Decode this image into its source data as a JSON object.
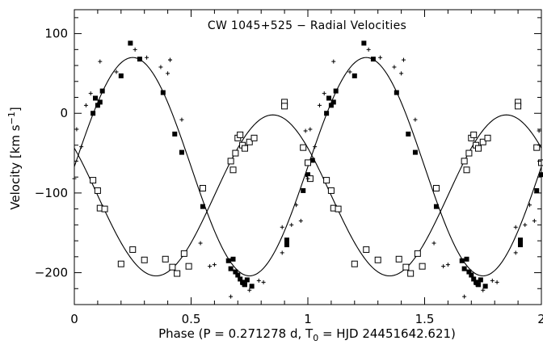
{
  "chart_data": {
    "type": "scatter",
    "title": "CW 1045+525 − Radial Velocities",
    "xlabel_main": "Phase (P = 0.271278 d, T",
    "xlabel_sub": "0",
    "xlabel_end": " = HJD 24451642.621)",
    "ylabel_main": "Velocity [km s",
    "ylabel_sup": "−1",
    "ylabel_end": "]",
    "xlim": [
      0,
      2
    ],
    "ylim": [
      -240,
      130
    ],
    "x_ticks": [
      {
        "value": 0,
        "label": "0"
      },
      {
        "value": 0.5,
        "label": "0.5"
      },
      {
        "value": 1,
        "label": "1"
      },
      {
        "value": 1.5,
        "label": "1.5"
      },
      {
        "value": 2,
        "label": "2"
      }
    ],
    "y_ticks": [
      {
        "value": 100,
        "label": "100"
      },
      {
        "value": 0,
        "label": "0"
      },
      {
        "value": -100,
        "label": "−100"
      },
      {
        "value": -200,
        "label": "−200"
      }
    ],
    "grid": false,
    "fits": [
      {
        "gamma": -67,
        "K": 137,
        "phase_max": 0.25
      },
      {
        "gamma": -103,
        "K": 101,
        "phase_max": 0.85
      }
    ],
    "series": [
      {
        "marker": "filled-square",
        "points": [
          [
            0.08,
            0
          ],
          [
            0.09,
            19
          ],
          [
            0.1,
            10
          ],
          [
            0.11,
            14
          ],
          [
            0.12,
            28
          ],
          [
            0.2,
            47
          ],
          [
            0.24,
            88
          ],
          [
            0.28,
            68
          ],
          [
            0.38,
            26
          ],
          [
            0.43,
            -26
          ],
          [
            0.46,
            -49
          ],
          [
            0.55,
            -117
          ],
          [
            0.66,
            -185
          ],
          [
            0.67,
            -195
          ],
          [
            0.68,
            -183
          ],
          [
            0.69,
            -199
          ],
          [
            0.7,
            -203
          ],
          [
            0.71,
            -208
          ],
          [
            0.72,
            -212
          ],
          [
            0.73,
            -215
          ],
          [
            0.74,
            -209
          ],
          [
            0.76,
            -217
          ],
          [
            0.98,
            -97
          ],
          [
            1.0,
            -77
          ],
          [
            1.02,
            -59
          ],
          [
            1.08,
            0
          ],
          [
            1.09,
            19
          ],
          [
            1.1,
            10
          ],
          [
            1.11,
            14
          ],
          [
            1.12,
            28
          ],
          [
            1.2,
            47
          ],
          [
            1.24,
            88
          ],
          [
            1.28,
            68
          ],
          [
            1.38,
            26
          ],
          [
            1.43,
            -26
          ],
          [
            1.46,
            -49
          ],
          [
            1.55,
            -117
          ],
          [
            1.66,
            -185
          ],
          [
            1.67,
            -195
          ],
          [
            1.68,
            -183
          ],
          [
            1.69,
            -199
          ],
          [
            1.7,
            -203
          ],
          [
            1.71,
            -208
          ],
          [
            1.72,
            -212
          ],
          [
            1.73,
            -215
          ],
          [
            1.74,
            -209
          ],
          [
            1.76,
            -217
          ],
          [
            1.91,
            -165
          ],
          [
            1.91,
            -159
          ],
          [
            1.98,
            -97
          ],
          [
            2.0,
            -77
          ],
          [
            0.91,
            -165
          ],
          [
            0.91,
            -159
          ]
        ]
      },
      {
        "marker": "open-square",
        "points": [
          [
            0.08,
            -84
          ],
          [
            0.1,
            -97
          ],
          [
            0.11,
            -119
          ],
          [
            0.13,
            -120
          ],
          [
            0.2,
            -189
          ],
          [
            0.25,
            -171
          ],
          [
            0.3,
            -184
          ],
          [
            0.39,
            -183
          ],
          [
            0.42,
            -193
          ],
          [
            0.44,
            -201
          ],
          [
            0.47,
            -176
          ],
          [
            0.49,
            -192
          ],
          [
            0.55,
            -94
          ],
          [
            0.67,
            -60
          ],
          [
            0.68,
            -71
          ],
          [
            0.69,
            -50
          ],
          [
            0.7,
            -31
          ],
          [
            0.71,
            -27
          ],
          [
            0.72,
            -40
          ],
          [
            0.73,
            -44
          ],
          [
            0.75,
            -36
          ],
          [
            0.77,
            -31
          ],
          [
            0.9,
            14
          ],
          [
            0.9,
            9
          ],
          [
            0.98,
            -43
          ],
          [
            1.0,
            -62
          ],
          [
            1.01,
            -82
          ],
          [
            1.08,
            -84
          ],
          [
            1.1,
            -97
          ],
          [
            1.11,
            -119
          ],
          [
            1.13,
            -120
          ],
          [
            1.2,
            -189
          ],
          [
            1.25,
            -171
          ],
          [
            1.3,
            -184
          ],
          [
            1.39,
            -183
          ],
          [
            1.42,
            -193
          ],
          [
            1.44,
            -201
          ],
          [
            1.47,
            -176
          ],
          [
            1.49,
            -192
          ],
          [
            1.55,
            -94
          ],
          [
            1.67,
            -60
          ],
          [
            1.68,
            -71
          ],
          [
            1.69,
            -50
          ],
          [
            1.7,
            -31
          ],
          [
            1.71,
            -27
          ],
          [
            1.72,
            -40
          ],
          [
            1.73,
            -44
          ],
          [
            1.75,
            -36
          ],
          [
            1.77,
            -31
          ],
          [
            1.9,
            14
          ],
          [
            1.9,
            9
          ],
          [
            1.98,
            -43
          ],
          [
            2.0,
            -62
          ]
        ]
      },
      {
        "marker": "plus",
        "points": [
          [
            0.0,
            -82
          ],
          [
            0.01,
            -20
          ],
          [
            0.03,
            -42
          ],
          [
            0.05,
            10
          ],
          [
            0.07,
            25
          ],
          [
            0.11,
            65
          ],
          [
            0.18,
            52
          ],
          [
            0.26,
            80
          ],
          [
            0.31,
            70
          ],
          [
            0.37,
            58
          ],
          [
            0.4,
            50
          ],
          [
            0.41,
            67
          ],
          [
            0.41,
            67
          ],
          [
            0.46,
            -8
          ],
          [
            0.54,
            -163
          ],
          [
            0.58,
            -192
          ],
          [
            0.6,
            -190
          ],
          [
            0.67,
            -230
          ],
          [
            0.72,
            -215
          ],
          [
            0.75,
            -222
          ],
          [
            0.79,
            -210
          ],
          [
            0.81,
            -212
          ],
          [
            0.89,
            -175
          ],
          [
            0.89,
            -143
          ],
          [
            0.93,
            -140
          ],
          [
            0.95,
            -115
          ],
          [
            0.97,
            -135
          ],
          [
            0.99,
            -22
          ],
          [
            1.0,
            -82
          ],
          [
            1.01,
            -20
          ],
          [
            1.03,
            -42
          ],
          [
            1.05,
            10
          ],
          [
            1.07,
            25
          ],
          [
            1.11,
            65
          ],
          [
            1.18,
            52
          ],
          [
            1.26,
            80
          ],
          [
            1.31,
            70
          ],
          [
            1.37,
            58
          ],
          [
            1.4,
            50
          ],
          [
            1.41,
            67
          ],
          [
            1.46,
            -8
          ],
          [
            1.54,
            -163
          ],
          [
            1.58,
            -192
          ],
          [
            1.6,
            -190
          ],
          [
            1.67,
            -230
          ],
          [
            1.72,
            -215
          ],
          [
            1.75,
            -222
          ],
          [
            1.79,
            -210
          ],
          [
            1.81,
            -212
          ],
          [
            1.89,
            -175
          ],
          [
            1.89,
            -143
          ],
          [
            1.93,
            -140
          ],
          [
            1.95,
            -115
          ],
          [
            1.97,
            -135
          ],
          [
            1.99,
            -22
          ]
        ]
      }
    ]
  }
}
